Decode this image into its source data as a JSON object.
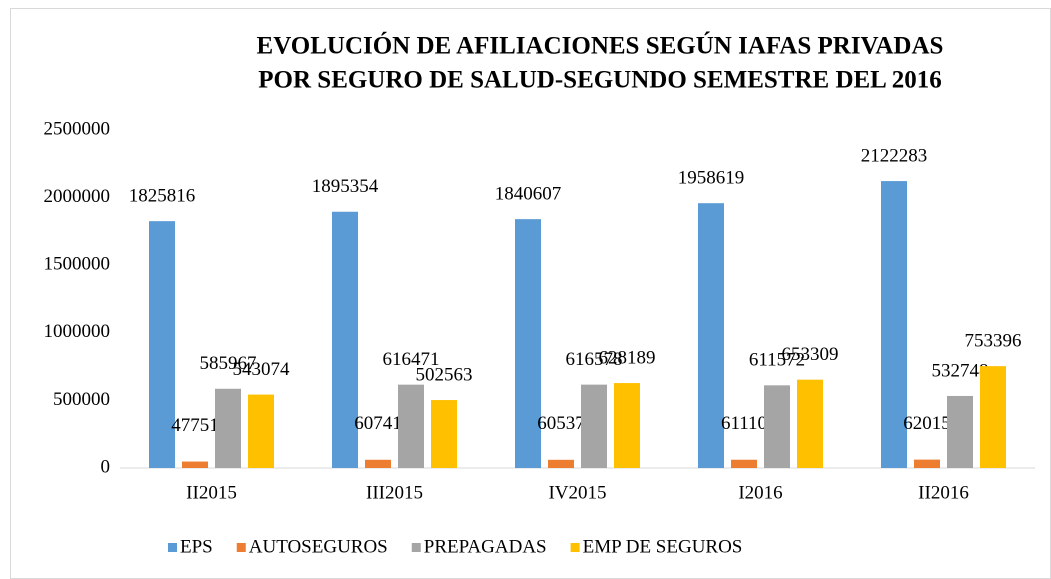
{
  "chart_data": {
    "type": "bar",
    "title": [
      "EVOLUCIÓN DE AFILIACIONES SEGÚN IAFAS PRIVADAS",
      "POR SEGURO DE SALUD-SEGUNDO SEMESTRE DEL 2016"
    ],
    "categories": [
      "II2015",
      "III2015",
      "IV2015",
      "I2016",
      "II2016"
    ],
    "series": [
      {
        "name": "EPS",
        "color": "#5b9bd5",
        "values": [
          1825816,
          1895354,
          1840607,
          1958619,
          2122283
        ]
      },
      {
        "name": "AUTOSEGUROS",
        "color": "#ed7d31",
        "values": [
          47751,
          60741,
          60537,
          61110,
          62015
        ]
      },
      {
        "name": "PREPAGADAS",
        "color": "#a5a5a5",
        "values": [
          585967,
          616471,
          616578,
          611572,
          532748
        ]
      },
      {
        "name": "EMP DE SEGUROS",
        "color": "#ffc000",
        "values": [
          543074,
          502563,
          628189,
          653309,
          753396
        ]
      }
    ],
    "ylim": [
      0,
      2500000
    ],
    "yticks": [
      0,
      500000,
      1000000,
      1500000,
      2000000,
      2500000
    ],
    "grid": false,
    "legend": "bottom"
  }
}
